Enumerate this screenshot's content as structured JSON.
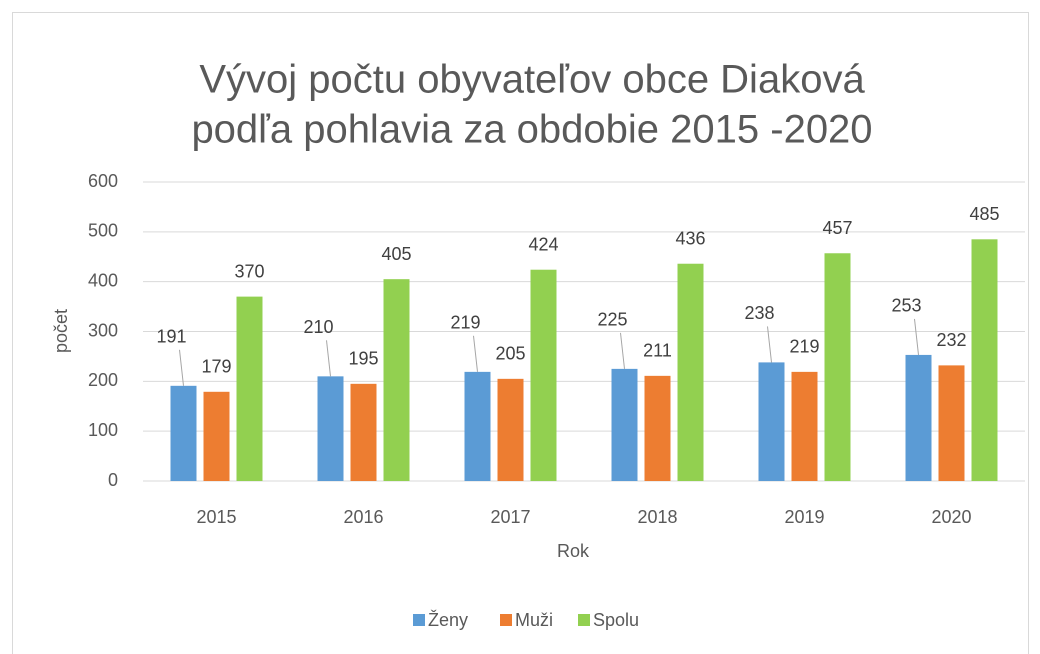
{
  "chart_data": {
    "type": "bar",
    "title": [
      "Vývoj počtu obyvateľov obce  Diaková",
      "podľa pohlavia za obdobie 2015 -2020"
    ],
    "x_label": "Rok",
    "y_label": "počet",
    "categories": [
      "2015",
      "2016",
      "2017",
      "2018",
      "2019",
      "2020"
    ],
    "series": [
      {
        "name": "Ženy",
        "color": "#5b9bd5",
        "values": [
          191,
          210,
          219,
          225,
          238,
          253
        ]
      },
      {
        "name": "Muži",
        "color": "#ed7d31",
        "values": [
          179,
          195,
          205,
          211,
          219,
          232
        ]
      },
      {
        "name": "Spolu",
        "color": "#92d050",
        "values": [
          370,
          405,
          424,
          436,
          457,
          485
        ]
      }
    ],
    "ylim": [
      0,
      600
    ],
    "yticks": [
      0,
      100,
      200,
      300,
      400,
      500,
      600
    ],
    "grid": true,
    "legend": "bottom"
  }
}
